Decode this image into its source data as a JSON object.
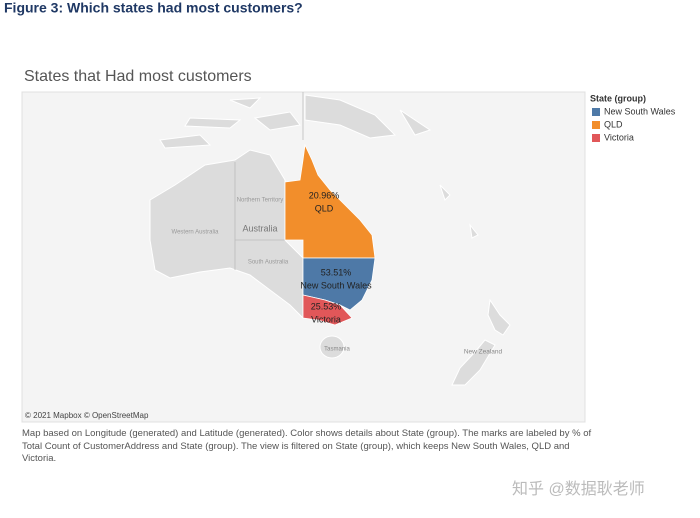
{
  "figure_caption": "Figure 3: Which states had most customers?",
  "chart_data": {
    "type": "map",
    "title": "States that Had most customers",
    "legend_title": "State (group)",
    "categories": [
      "QLD",
      "New South Wales",
      "Victoria"
    ],
    "values": [
      20.96,
      53.51,
      25.53
    ],
    "value_labels": [
      "20.96%",
      "53.51%",
      "25.53%"
    ],
    "colors": [
      "#f28e2b",
      "#4e79a7",
      "#e15759"
    ],
    "legend_order": [
      1,
      0,
      2
    ],
    "base_labels": [
      "Northern Territory",
      "Western Australia",
      "Australia",
      "South Australia",
      "Tasmania",
      "New Zealand"
    ],
    "attribution": "© 2021 Mapbox © OpenStreetMap"
  },
  "note": "Map based on Longitude (generated) and Latitude (generated).  Color shows details about State (group).  The marks are labeled by % of Total Count of CustomerAddress and State (group). The view is filtered on State (group), which keeps New South Wales, QLD and Victoria.",
  "watermark": "知乎 @数据耿老师"
}
